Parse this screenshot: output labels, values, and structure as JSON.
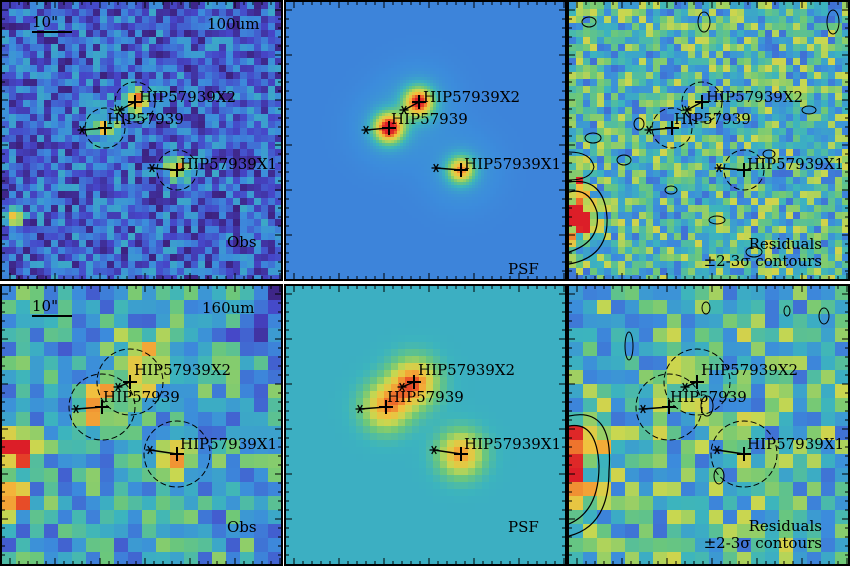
{
  "figure": {
    "rows": [
      {
        "band": "100um",
        "scale_bar": "10\"",
        "panels": [
          {
            "kind": "obs",
            "label": "Obs",
            "contours": false
          },
          {
            "kind": "psf",
            "label": "PSF",
            "contours": false
          },
          {
            "kind": "residual",
            "label_line1": "Residuals",
            "label_line2": "±2-3σ contours",
            "contours": true
          }
        ],
        "sources": [
          "HIP57939X2",
          "HIP57939",
          "HIP57939X1"
        ]
      },
      {
        "band": "160um",
        "scale_bar": "10\"",
        "panels": [
          {
            "kind": "obs",
            "label": "Obs",
            "contours": false
          },
          {
            "kind": "psf",
            "label": "PSF",
            "contours": false
          },
          {
            "kind": "residual",
            "label_line1": "Residuals",
            "label_line2": "±2-3σ contours",
            "contours": true
          }
        ],
        "sources": [
          "HIP57939X2",
          "HIP57939",
          "HIP57939X1"
        ]
      }
    ],
    "colors": {
      "background_psf_row1": "#4f8bd2",
      "background_psf_row2": "#5ab1b6",
      "peak": "#f2c94c"
    }
  }
}
